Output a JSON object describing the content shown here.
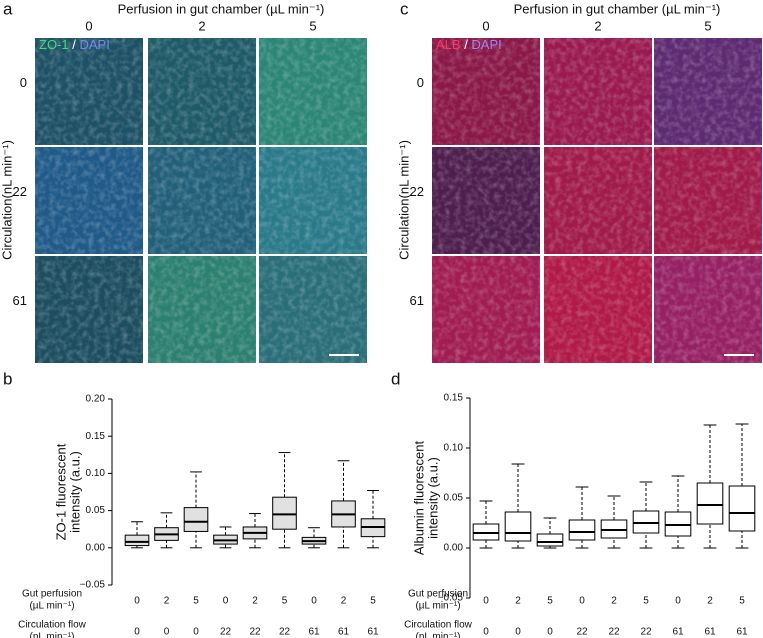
{
  "panels": [
    {
      "letter": "a",
      "title": "Perfusion in gut chamber (µL min⁻¹)",
      "columns": [
        "0",
        "2",
        "5"
      ],
      "row_title": "Circulation(nL min⁻¹)",
      "rows": [
        "0",
        "22",
        "61"
      ],
      "stain": [
        {
          "text": "ZO-1",
          "color": "#3fe06a"
        },
        {
          "text": " / ",
          "color": "#ffffff"
        },
        {
          "text": "DAPI",
          "color": "#7d86f0"
        }
      ]
    },
    {
      "letter": "c",
      "title": "Perfusion in gut chamber (µL min⁻¹)",
      "columns": [
        "0",
        "2",
        "5"
      ],
      "row_title": "Circulation(nL min⁻¹)",
      "rows": [
        "0",
        "22",
        "61"
      ],
      "stain": [
        {
          "text": "ALB",
          "color": "#ff3a5a"
        },
        {
          "text": " / ",
          "color": "#ffffff"
        },
        {
          "text": "DAPI",
          "color": "#9a8cf0"
        }
      ]
    }
  ],
  "chart_data": [
    {
      "type": "box",
      "panel": "b",
      "ylabel": [
        "ZO-1 fluorescent",
        "intensity (a.u.)"
      ],
      "color": "#7cc94a",
      "box_fill": "#c8c8c8",
      "ylim": [
        -0.05,
        0.2
      ],
      "yticks": [
        {
          "value": -0.05,
          "label": "−0.05"
        },
        {
          "value": 0,
          "label": "0.00"
        },
        {
          "value": 0.05,
          "label": "0.05"
        },
        {
          "value": 0.1,
          "label": "0.10"
        },
        {
          "value": 0.15,
          "label": "0.15"
        },
        {
          "value": 0.2,
          "label": "0.20"
        }
      ],
      "x_rows": [
        {
          "label": [
            "Gut perfusion",
            "(µL min⁻¹)"
          ],
          "values": [
            "0",
            "2",
            "5",
            "0",
            "2",
            "5",
            "0",
            "2",
            "5"
          ]
        },
        {
          "label": [
            "Circulation flow",
            "(nL min⁻¹)"
          ],
          "values": [
            "0",
            "0",
            "0",
            "22",
            "22",
            "22",
            "61",
            "61",
            "61"
          ]
        }
      ],
      "boxes": [
        {
          "whislo": 0,
          "q1": 0.003,
          "med": 0.008,
          "q3": 0.017,
          "whishi": 0.035
        },
        {
          "whislo": 0,
          "q1": 0.01,
          "med": 0.018,
          "q3": 0.027,
          "whishi": 0.047
        },
        {
          "whislo": 0,
          "q1": 0.022,
          "med": 0.035,
          "q3": 0.054,
          "whishi": 0.102
        },
        {
          "whislo": 0,
          "q1": 0.005,
          "med": 0.01,
          "q3": 0.017,
          "whishi": 0.028
        },
        {
          "whislo": 0,
          "q1": 0.012,
          "med": 0.02,
          "q3": 0.028,
          "whishi": 0.046
        },
        {
          "whislo": 0,
          "q1": 0.025,
          "med": 0.045,
          "q3": 0.068,
          "whishi": 0.128
        },
        {
          "whislo": 0,
          "q1": 0.005,
          "med": 0.009,
          "q3": 0.014,
          "whishi": 0.027
        },
        {
          "whislo": 0,
          "q1": 0.028,
          "med": 0.045,
          "q3": 0.063,
          "whishi": 0.117
        },
        {
          "whislo": 0,
          "q1": 0.015,
          "med": 0.028,
          "q3": 0.039,
          "whishi": 0.077
        }
      ]
    },
    {
      "type": "box",
      "panel": "d",
      "ylabel": [
        "Albumin fluorescent",
        "intensity (a.u.)"
      ],
      "color": "#f0603a",
      "box_fill": "#ffffff",
      "ylim": [
        -0.05,
        0.15
      ],
      "yticks": [
        {
          "value": -0.05,
          "label": "−0.05"
        },
        {
          "value": 0,
          "label": "0.00"
        },
        {
          "value": 0.05,
          "label": "0.05"
        },
        {
          "value": 0.1,
          "label": "0.10"
        },
        {
          "value": 0.15,
          "label": "0.15"
        }
      ],
      "x_rows": [
        {
          "label": [
            "Gut perfusion",
            "(µL min⁻¹)"
          ],
          "values": [
            "0",
            "2",
            "5",
            "0",
            "2",
            "5",
            "0",
            "2",
            "5"
          ]
        },
        {
          "label": [
            "Circulation flow",
            "(nL min⁻¹)"
          ],
          "values": [
            "0",
            "0",
            "0",
            "22",
            "22",
            "22",
            "61",
            "61",
            "61"
          ]
        }
      ],
      "boxes": [
        {
          "whislo": 0,
          "q1": 0.008,
          "med": 0.015,
          "q3": 0.024,
          "whishi": 0.047
        },
        {
          "whislo": 0,
          "q1": 0.007,
          "med": 0.015,
          "q3": 0.036,
          "whishi": 0.084
        },
        {
          "whislo": 0,
          "q1": 0.002,
          "med": 0.006,
          "q3": 0.014,
          "whishi": 0.03
        },
        {
          "whislo": 0,
          "q1": 0.008,
          "med": 0.016,
          "q3": 0.028,
          "whishi": 0.061
        },
        {
          "whislo": 0,
          "q1": 0.01,
          "med": 0.018,
          "q3": 0.028,
          "whishi": 0.052
        },
        {
          "whislo": 0,
          "q1": 0.015,
          "med": 0.025,
          "q3": 0.037,
          "whishi": 0.066
        },
        {
          "whislo": 0,
          "q1": 0.012,
          "med": 0.023,
          "q3": 0.036,
          "whishi": 0.072
        },
        {
          "whislo": 0,
          "q1": 0.024,
          "med": 0.043,
          "q3": 0.065,
          "whishi": 0.123
        },
        {
          "whislo": 0,
          "q1": 0.017,
          "med": 0.035,
          "q3": 0.062,
          "whishi": 0.124
        }
      ]
    }
  ]
}
